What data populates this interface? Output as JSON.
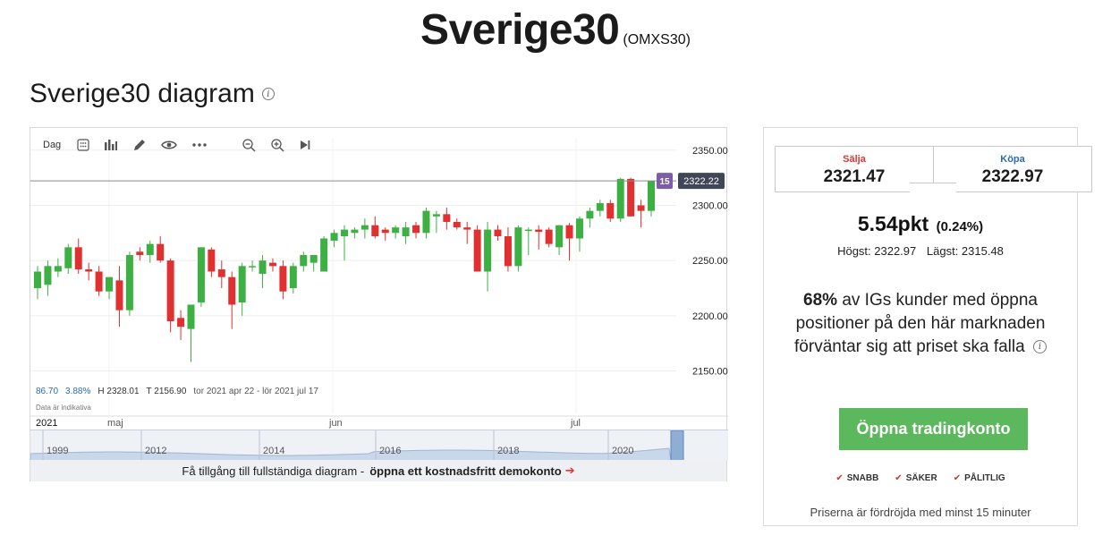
{
  "header": {
    "title": "Sverige30",
    "code": "(OMXS30)"
  },
  "section": {
    "title": "Sverige30 diagram"
  },
  "toolbar": {
    "interval": "Dag",
    "icons": [
      "calendar-grid-icon",
      "bar-chart-icon",
      "pencil-icon",
      "eye-icon",
      "more-icon",
      "zoom-out-icon",
      "zoom-in-icon",
      "play-end-icon"
    ]
  },
  "chart": {
    "y_ticks": [
      "2350.00",
      "2300.00",
      "2250.00",
      "2200.00",
      "2150.00"
    ],
    "current_marker": "15",
    "current_price": "2322.22",
    "x_labels": [
      "2021",
      "maj",
      "jun",
      "jul"
    ],
    "nav_years": [
      "1999",
      "2012",
      "2014",
      "2016",
      "2018",
      "2020"
    ]
  },
  "chart_data": {
    "type": "candlestick",
    "ylim": [
      2135,
      2362
    ],
    "current_level": 2322.22,
    "up_color": "#3cb043",
    "down_color": "#e03030",
    "candles": [
      {
        "o": 2225,
        "h": 2245,
        "l": 2215,
        "c": 2240
      },
      {
        "o": 2228,
        "h": 2250,
        "l": 2218,
        "c": 2245
      },
      {
        "o": 2240,
        "h": 2252,
        "l": 2235,
        "c": 2245
      },
      {
        "o": 2243,
        "h": 2265,
        "l": 2238,
        "c": 2262
      },
      {
        "o": 2262,
        "h": 2270,
        "l": 2238,
        "c": 2242
      },
      {
        "o": 2242,
        "h": 2248,
        "l": 2232,
        "c": 2240
      },
      {
        "o": 2240,
        "h": 2245,
        "l": 2218,
        "c": 2222
      },
      {
        "o": 2222,
        "h": 2235,
        "l": 2215,
        "c": 2235
      },
      {
        "o": 2232,
        "h": 2245,
        "l": 2190,
        "c": 2205
      },
      {
        "o": 2205,
        "h": 2258,
        "l": 2200,
        "c": 2255
      },
      {
        "o": 2258,
        "h": 2262,
        "l": 2250,
        "c": 2255
      },
      {
        "o": 2255,
        "h": 2268,
        "l": 2248,
        "c": 2265
      },
      {
        "o": 2265,
        "h": 2272,
        "l": 2248,
        "c": 2250
      },
      {
        "o": 2250,
        "h": 2252,
        "l": 2185,
        "c": 2195
      },
      {
        "o": 2198,
        "h": 2205,
        "l": 2178,
        "c": 2190
      },
      {
        "o": 2188,
        "h": 2210,
        "l": 2158,
        "c": 2210
      },
      {
        "o": 2212,
        "h": 2262,
        "l": 2208,
        "c": 2262
      },
      {
        "o": 2260,
        "h": 2262,
        "l": 2235,
        "c": 2240
      },
      {
        "o": 2242,
        "h": 2250,
        "l": 2225,
        "c": 2235
      },
      {
        "o": 2235,
        "h": 2240,
        "l": 2188,
        "c": 2210
      },
      {
        "o": 2212,
        "h": 2248,
        "l": 2200,
        "c": 2245
      },
      {
        "o": 2245,
        "h": 2250,
        "l": 2240,
        "c": 2245
      },
      {
        "o": 2238,
        "h": 2255,
        "l": 2225,
        "c": 2250
      },
      {
        "o": 2248,
        "h": 2252,
        "l": 2240,
        "c": 2245
      },
      {
        "o": 2245,
        "h": 2250,
        "l": 2215,
        "c": 2222
      },
      {
        "o": 2225,
        "h": 2248,
        "l": 2220,
        "c": 2245
      },
      {
        "o": 2245,
        "h": 2258,
        "l": 2240,
        "c": 2255
      },
      {
        "o": 2248,
        "h": 2255,
        "l": 2240,
        "c": 2255
      },
      {
        "o": 2240,
        "h": 2272,
        "l": 2240,
        "c": 2270
      },
      {
        "o": 2268,
        "h": 2278,
        "l": 2262,
        "c": 2275
      },
      {
        "o": 2272,
        "h": 2282,
        "l": 2250,
        "c": 2278
      },
      {
        "o": 2275,
        "h": 2280,
        "l": 2270,
        "c": 2278
      },
      {
        "o": 2278,
        "h": 2288,
        "l": 2270,
        "c": 2282
      },
      {
        "o": 2282,
        "h": 2290,
        "l": 2270,
        "c": 2272
      },
      {
        "o": 2278,
        "h": 2280,
        "l": 2268,
        "c": 2275
      },
      {
        "o": 2275,
        "h": 2282,
        "l": 2270,
        "c": 2280
      },
      {
        "o": 2272,
        "h": 2285,
        "l": 2265,
        "c": 2280
      },
      {
        "o": 2282,
        "h": 2285,
        "l": 2270,
        "c": 2275
      },
      {
        "o": 2275,
        "h": 2298,
        "l": 2270,
        "c": 2295
      },
      {
        "o": 2290,
        "h": 2295,
        "l": 2275,
        "c": 2292
      },
      {
        "o": 2292,
        "h": 2298,
        "l": 2278,
        "c": 2285
      },
      {
        "o": 2285,
        "h": 2288,
        "l": 2278,
        "c": 2280
      },
      {
        "o": 2280,
        "h": 2285,
        "l": 2265,
        "c": 2278
      },
      {
        "o": 2278,
        "h": 2282,
        "l": 2240,
        "c": 2240
      },
      {
        "o": 2240,
        "h": 2285,
        "l": 2222,
        "c": 2278
      },
      {
        "o": 2278,
        "h": 2282,
        "l": 2268,
        "c": 2272
      },
      {
        "o": 2272,
        "h": 2280,
        "l": 2240,
        "c": 2245
      },
      {
        "o": 2245,
        "h": 2282,
        "l": 2240,
        "c": 2280
      },
      {
        "o": 2278,
        "h": 2280,
        "l": 2255,
        "c": 2278
      },
      {
        "o": 2278,
        "h": 2282,
        "l": 2260,
        "c": 2276
      },
      {
        "o": 2278,
        "h": 2280,
        "l": 2262,
        "c": 2265
      },
      {
        "o": 2262,
        "h": 2282,
        "l": 2255,
        "c": 2282
      },
      {
        "o": 2282,
        "h": 2284,
        "l": 2250,
        "c": 2270
      },
      {
        "o": 2270,
        "h": 2290,
        "l": 2258,
        "c": 2288
      },
      {
        "o": 2288,
        "h": 2298,
        "l": 2280,
        "c": 2295
      },
      {
        "o": 2295,
        "h": 2305,
        "l": 2290,
        "c": 2302
      },
      {
        "o": 2302,
        "h": 2305,
        "l": 2285,
        "c": 2288
      },
      {
        "o": 2288,
        "h": 2325,
        "l": 2285,
        "c": 2324
      },
      {
        "o": 2324,
        "h": 2325,
        "l": 2290,
        "c": 2290
      },
      {
        "o": 2300,
        "h": 2305,
        "l": 2280,
        "c": 2295
      },
      {
        "o": 2295,
        "h": 2322,
        "l": 2290,
        "c": 2322
      }
    ]
  },
  "ohlc": {
    "change": "86.70",
    "change_pct": "3.88%",
    "high": "H 2328.01",
    "low": "T 2156.90",
    "range": "tor 2021 apr 22 - lör 2021 jul 17",
    "indicative": "Data är indikativa"
  },
  "cta": {
    "text": "Få tillgång till fullständiga diagram -",
    "link": "öppna ett kostnadsfritt demokonto",
    "arrow": "➔"
  },
  "quote": {
    "sell_label": "Sälja",
    "sell_price": "2321.47",
    "buy_label": "Köpa",
    "buy_price": "2322.97",
    "change": "5.54pkt",
    "change_pct": "(0.24%)",
    "high": "Högst: 2322.97",
    "low": "Lägst: 2315.48"
  },
  "sentiment": {
    "percent": "68%",
    "text": "av IGs kunder med öppna positioner på den här marknaden förväntar sig att priset ska falla"
  },
  "button": {
    "label": "Öppna tradingkonto"
  },
  "badges": [
    "SNABB",
    "SÄKER",
    "PÅLITLIG"
  ],
  "delay_note": "Priserna är fördröjda med minst 15 minuter"
}
